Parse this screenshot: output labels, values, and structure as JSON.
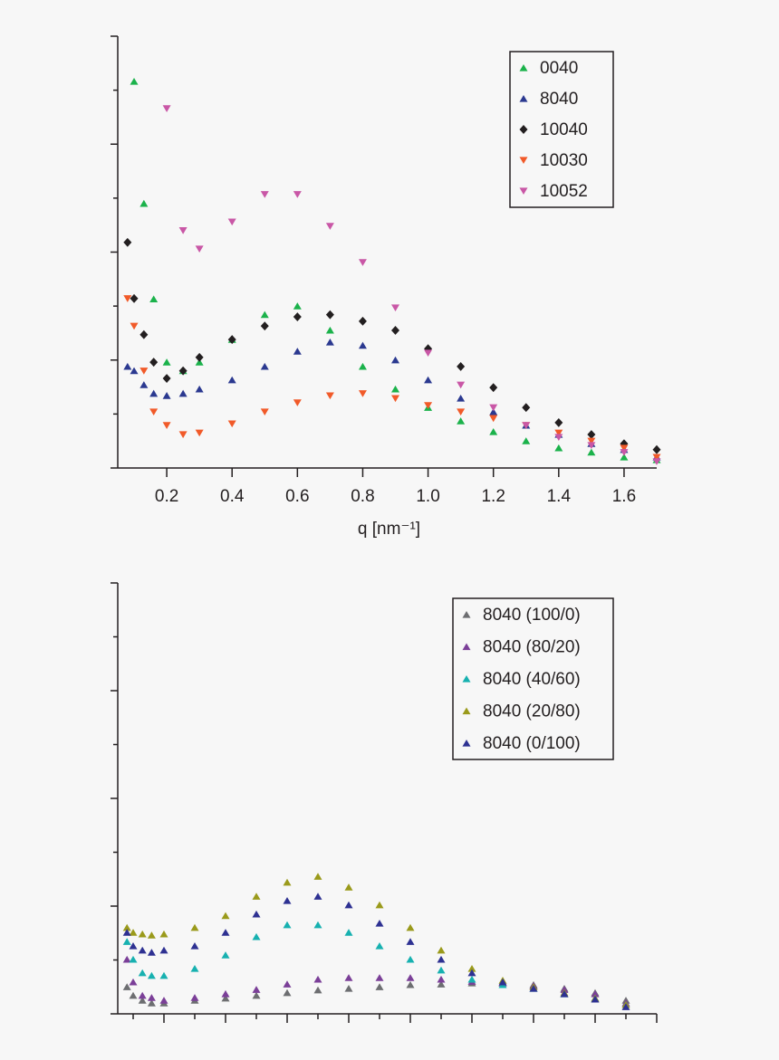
{
  "chart_data": [
    {
      "type": "scatter",
      "xlabel": "q [nm⁻¹]",
      "legend": "upper right",
      "tick_labels": {
        "x": true,
        "y": false
      },
      "xlim": [
        0.05,
        1.7
      ],
      "ylim": [
        0,
        8
      ],
      "xticks": [
        0.2,
        0.4,
        0.6,
        0.8,
        {
          "value": 1,
          "label": "1.0"
        },
        1.2,
        1.4,
        1.6
      ],
      "yticks": [
        0,
        1,
        2,
        3,
        4,
        5,
        6,
        7,
        8
      ],
      "x": [
        0.08,
        0.1,
        0.13,
        0.16,
        0.2,
        0.25,
        0.3,
        0.4,
        0.5,
        0.6,
        0.7,
        0.8,
        0.9,
        1.0,
        1.1,
        1.2,
        1.3,
        1.4,
        1.5,
        1.6,
        1.7
      ],
      "series": [
        {
          "name": "0040",
          "color": "#1bb24b",
          "marker": "triangle-up",
          "values": [
            null,
            7.16,
            4.9,
            3.13,
            1.96,
            1.8,
            1.96,
            2.38,
            2.84,
            3.0,
            2.55,
            1.88,
            1.46,
            1.12,
            0.87,
            0.67,
            0.5,
            0.37,
            0.29,
            0.2,
            0.15
          ]
        },
        {
          "name": "8040",
          "color": "#2b3990",
          "marker": "triangle-up",
          "values": [
            1.88,
            1.8,
            1.54,
            1.38,
            1.34,
            1.38,
            1.46,
            1.63,
            1.88,
            2.16,
            2.33,
            2.27,
            2.0,
            1.63,
            1.29,
            1.04,
            0.79,
            0.62,
            0.45,
            0.34,
            0.2
          ]
        },
        {
          "name": "10040",
          "color": "#231f20",
          "marker": "diamond",
          "values": [
            4.18,
            3.14,
            2.47,
            1.96,
            1.66,
            1.8,
            2.05,
            2.38,
            2.63,
            2.8,
            2.84,
            2.72,
            2.55,
            2.21,
            1.88,
            1.49,
            1.12,
            0.84,
            0.62,
            0.45,
            0.34
          ]
        },
        {
          "name": "10030",
          "color": "#f15a29",
          "marker": "triangle-down",
          "values": [
            3.14,
            2.63,
            1.8,
            1.04,
            0.79,
            0.62,
            0.65,
            0.82,
            1.04,
            1.21,
            1.34,
            1.38,
            1.29,
            1.16,
            1.04,
            0.92,
            0.79,
            0.65,
            0.5,
            0.37,
            0.2
          ]
        },
        {
          "name": "10052",
          "color": "#c957a6",
          "marker": "triangle-down",
          "values": [
            null,
            null,
            null,
            null,
            6.66,
            4.4,
            4.06,
            4.56,
            5.07,
            5.07,
            4.48,
            3.81,
            2.97,
            2.13,
            1.54,
            1.12,
            0.79,
            0.57,
            0.42,
            0.29,
            0.12
          ]
        }
      ]
    },
    {
      "type": "scatter",
      "legend": "upper right",
      "tick_labels": {
        "x": false,
        "y": false
      },
      "xlim": [
        0.05,
        1.8
      ],
      "ylim": [
        0,
        8
      ],
      "xticks": [
        0.1,
        0.2,
        0.3,
        0.4,
        0.5,
        0.6,
        0.7,
        0.8,
        0.9,
        1.0,
        1.1,
        1.2,
        1.3,
        1.4,
        1.5,
        1.6,
        1.7,
        1.8
      ],
      "yticks": [
        0,
        1,
        2,
        3,
        4,
        5,
        6,
        7,
        8
      ],
      "x": [
        0.08,
        0.1,
        0.13,
        0.16,
        0.2,
        0.3,
        0.4,
        0.5,
        0.6,
        0.7,
        0.8,
        0.9,
        1.0,
        1.1,
        1.2,
        1.3,
        1.4,
        1.5,
        1.6,
        1.7
      ],
      "series": [
        {
          "name": "8040 (100/0)",
          "color": "#6d6e71",
          "marker": "triangle-up",
          "values": [
            0.5,
            0.34,
            0.25,
            0.2,
            0.2,
            0.25,
            0.29,
            0.34,
            0.39,
            0.44,
            0.47,
            0.5,
            0.54,
            0.55,
            0.57,
            0.57,
            0.54,
            0.47,
            0.39,
            0.25
          ]
        },
        {
          "name": "8040 (80/20)",
          "color": "#7b3f98",
          "marker": "triangle-up",
          "values": [
            1.01,
            0.59,
            0.34,
            0.3,
            0.25,
            0.3,
            0.37,
            0.45,
            0.55,
            0.64,
            0.67,
            0.67,
            0.67,
            0.64,
            0.6,
            0.57,
            0.52,
            0.45,
            0.37,
            0.2
          ]
        },
        {
          "name": "8040 (40/60)",
          "color": "#17b1b0",
          "marker": "triangle-up",
          "values": [
            1.34,
            1.01,
            0.76,
            0.71,
            0.71,
            0.84,
            1.09,
            1.43,
            1.65,
            1.65,
            1.51,
            1.26,
            1.01,
            0.81,
            0.64,
            0.54,
            0.47,
            0.37,
            0.29,
            0.17
          ]
        },
        {
          "name": "8040 (20/80)",
          "color": "#9a9a1b",
          "marker": "triangle-up",
          "values": [
            1.6,
            1.51,
            1.48,
            1.46,
            1.48,
            1.6,
            1.82,
            2.18,
            2.44,
            2.55,
            2.35,
            2.02,
            1.6,
            1.18,
            0.84,
            0.62,
            0.5,
            0.39,
            0.29,
            0.17
          ]
        },
        {
          "name": "8040 (0/100)",
          "color": "#2e3192",
          "marker": "triangle-up",
          "values": [
            1.51,
            1.26,
            1.18,
            1.14,
            1.18,
            1.26,
            1.51,
            1.85,
            2.1,
            2.18,
            2.02,
            1.68,
            1.34,
            1.01,
            0.76,
            0.59,
            0.47,
            0.37,
            0.27,
            0.13
          ]
        }
      ]
    }
  ]
}
